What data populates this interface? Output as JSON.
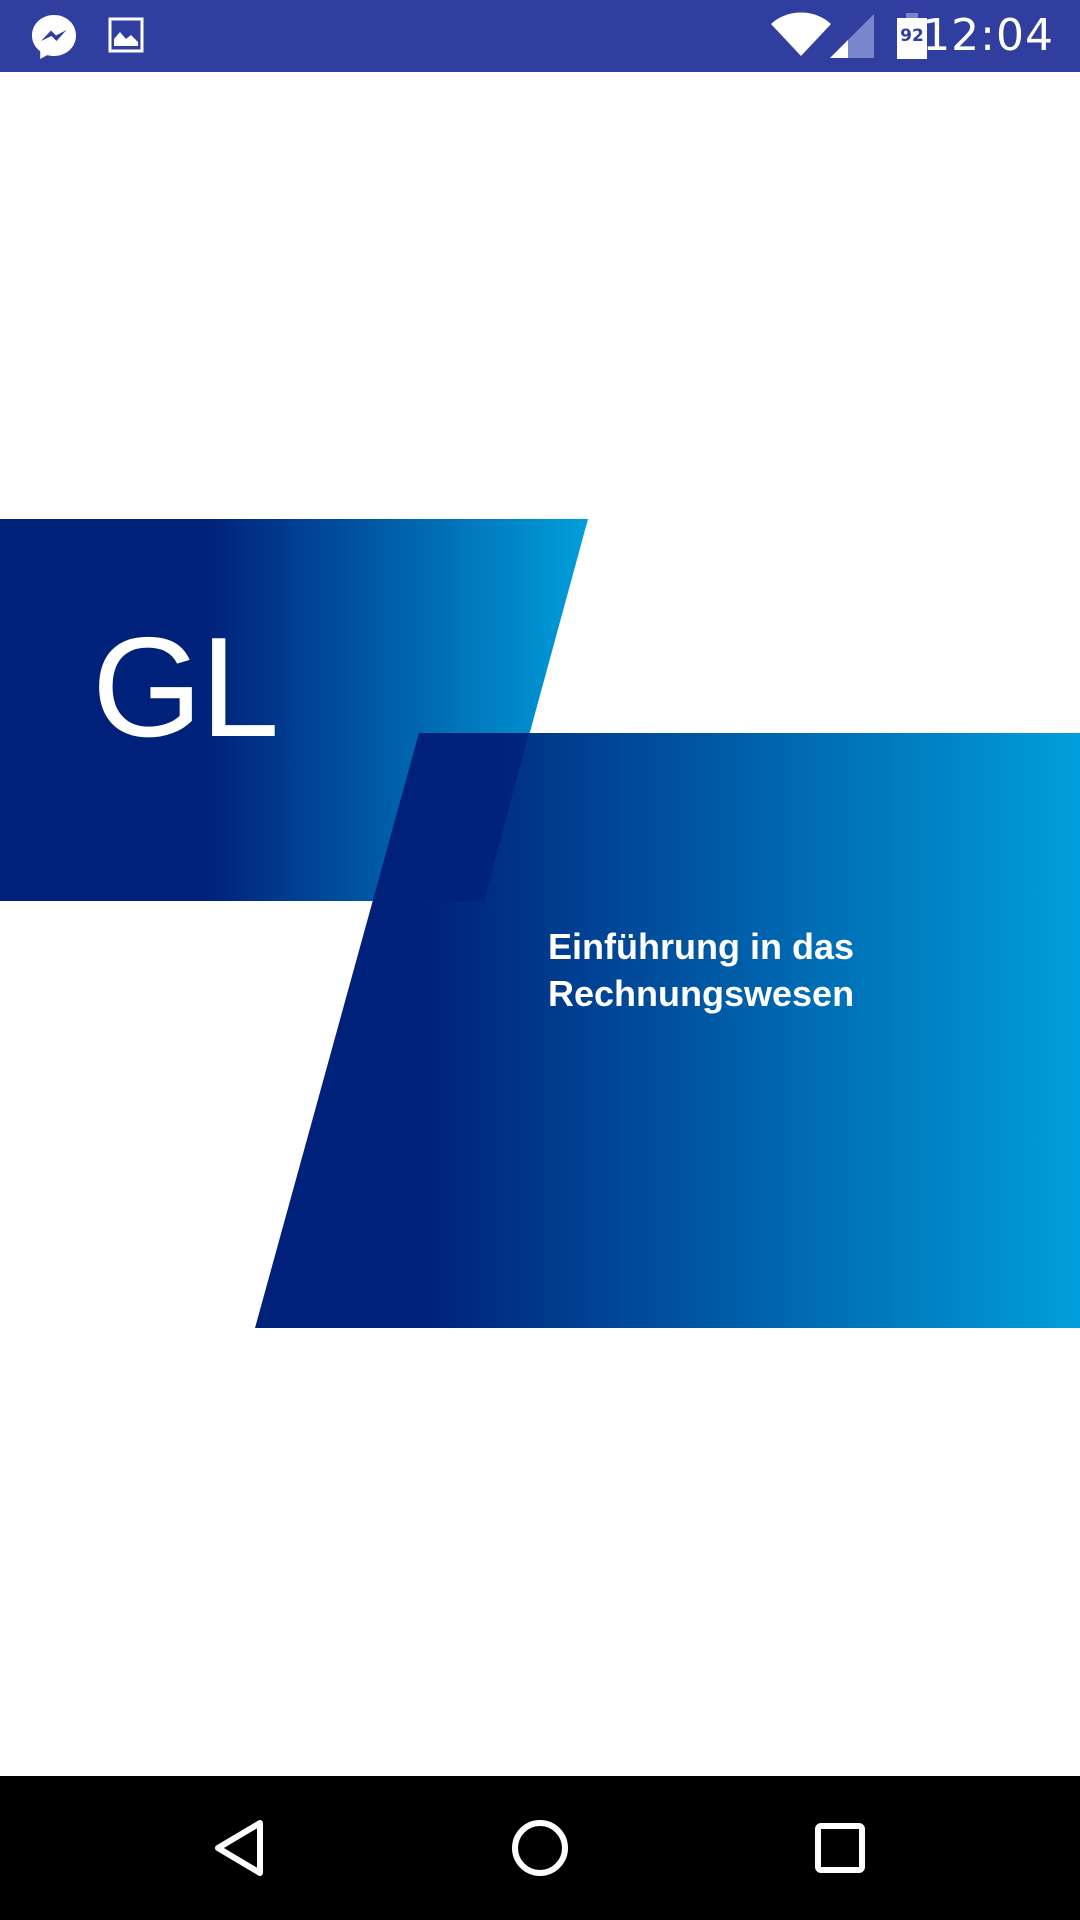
{
  "status_bar": {
    "time": "12:04",
    "battery_level": "92",
    "notification_icons": [
      "messenger-icon",
      "image-icon"
    ],
    "system_icons": [
      "wifi-icon",
      "cell-signal-icon",
      "battery-icon"
    ],
    "background_color": "#303f9f"
  },
  "splash": {
    "logo_text": "GL",
    "subtitle_lines": [
      "Einführung in das",
      "Rechnungswesen"
    ],
    "gradient_dark": "#00217a",
    "gradient_light": "#009fdb"
  },
  "nav_bar": {
    "buttons": [
      "back-icon",
      "home-icon",
      "recents-icon"
    ]
  }
}
